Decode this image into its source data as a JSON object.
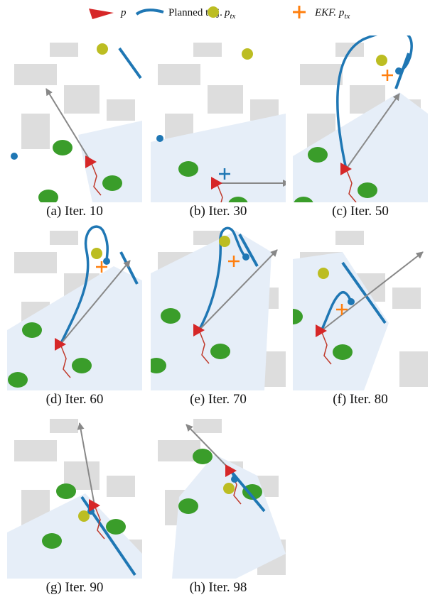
{
  "legend": [
    {
      "label": "p"
    },
    {
      "label": "Planned traj."
    },
    {
      "label": "p",
      "subscript": "tx"
    },
    {
      "label": "EKF. p",
      "subscript": "tx"
    }
  ],
  "panels": [
    {
      "caption": "(a) Iter. 10"
    },
    {
      "caption": "(b) Iter. 30"
    },
    {
      "caption": "(c) Iter. 50"
    },
    {
      "caption": "(d) Iter. 60"
    },
    {
      "caption": "(e) Iter. 70"
    },
    {
      "caption": "(f) Iter. 80"
    },
    {
      "caption": "(g) Iter. 90"
    },
    {
      "caption": "(h) Iter. 98"
    }
  ]
}
